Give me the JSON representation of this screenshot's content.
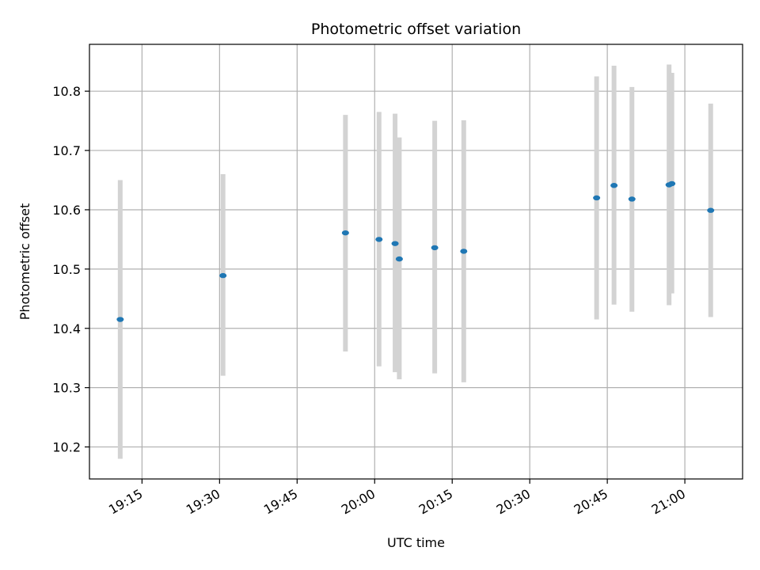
{
  "chart_data": {
    "type": "scatter",
    "title": "Photometric offset variation",
    "xlabel": "UTC time",
    "ylabel": "Photometric offset",
    "x_axis": {
      "unit": "UTC time (HH:MM)",
      "range": [
        "19:04:50",
        "21:11:10"
      ],
      "ticks": [
        "19:15",
        "19:30",
        "19:45",
        "20:00",
        "20:15",
        "20:30",
        "20:45",
        "21:00"
      ]
    },
    "y_axis": {
      "range": [
        10.146,
        10.879
      ],
      "ticks": [
        "10.2",
        "10.3",
        "10.4",
        "10.5",
        "10.6",
        "10.7",
        "10.8"
      ]
    },
    "grid": true,
    "legend": "none",
    "colors": {
      "point": "#1f77b4",
      "errorbar": "#d3d3d3",
      "grid": "#b0b0b0"
    },
    "points": [
      {
        "x": "19:10:47",
        "y": 10.415,
        "err_low": 10.18,
        "err_high": 10.65
      },
      {
        "x": "19:30:40",
        "y": 10.489,
        "err_low": 10.32,
        "err_high": 10.66
      },
      {
        "x": "19:54:21",
        "y": 10.561,
        "err_low": 10.361,
        "err_high": 10.76
      },
      {
        "x": "20:00:51",
        "y": 10.55,
        "err_low": 10.336,
        "err_high": 10.765
      },
      {
        "x": "20:03:57",
        "y": 10.543,
        "err_low": 10.326,
        "err_high": 10.762
      },
      {
        "x": "20:04:46",
        "y": 10.517,
        "err_low": 10.314,
        "err_high": 10.722
      },
      {
        "x": "20:11:37",
        "y": 10.536,
        "err_low": 10.324,
        "err_high": 10.75
      },
      {
        "x": "20:17:14",
        "y": 10.53,
        "err_low": 10.309,
        "err_high": 10.751
      },
      {
        "x": "20:42:56",
        "y": 10.62,
        "err_low": 10.415,
        "err_high": 10.825
      },
      {
        "x": "20:46:18",
        "y": 10.641,
        "err_low": 10.44,
        "err_high": 10.843
      },
      {
        "x": "20:49:46",
        "y": 10.618,
        "err_low": 10.428,
        "err_high": 10.807
      },
      {
        "x": "20:56:57",
        "y": 10.642,
        "err_low": 10.439,
        "err_high": 10.845
      },
      {
        "x": "20:57:29",
        "y": 10.644,
        "err_low": 10.459,
        "err_high": 10.831
      },
      {
        "x": "21:05:00",
        "y": 10.599,
        "err_low": 10.419,
        "err_high": 10.779
      }
    ]
  }
}
